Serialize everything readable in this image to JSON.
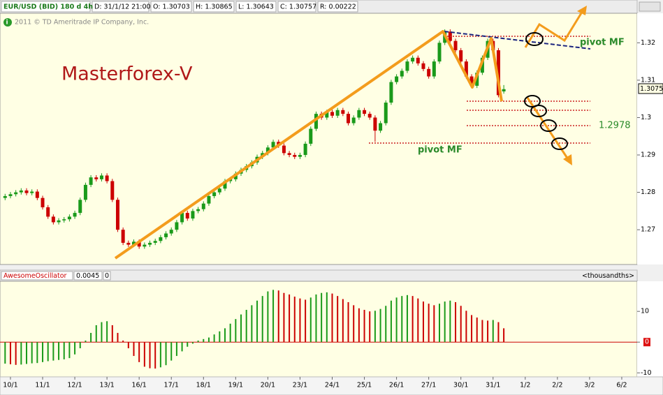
{
  "header": {
    "symbol": "EUR/USD (BID)  180 d  4h",
    "date": "D: 31/1/12 21:00",
    "open": "O: 1.30703",
    "high": "H: 1.30865",
    "low": "L: 1.30643",
    "close": "C: 1.30757",
    "range": "R: 0.00222",
    "copyright": "2011 © TD Ameritrade IP Company, Inc."
  },
  "annotations": {
    "brand": "Masterforex-V",
    "pivot_top": "pivot MF",
    "level": "1.2978",
    "pivot_bottom": "pivot MF",
    "last_price": "1.3075"
  },
  "chart_data": [
    {
      "type": "candlestick",
      "up_color": "#1a9a1a",
      "down_color": "#cc0000",
      "xlim": [
        -0.95,
        117.87
      ],
      "ylim": [
        1.2607,
        1.3279
      ],
      "yticks": [
        1.27,
        1.28,
        1.29,
        1.3,
        1.31,
        1.32
      ],
      "open": [
        1.2785,
        1.279,
        1.2795,
        1.28,
        1.2805,
        1.2798,
        1.2802,
        1.2785,
        1.276,
        1.2735,
        1.272,
        1.2725,
        1.2728,
        1.2735,
        1.2745,
        1.278,
        1.282,
        1.284,
        1.2835,
        1.2845,
        1.283,
        1.278,
        1.27,
        1.2665,
        1.266,
        1.2668,
        1.2655,
        1.266,
        1.2665,
        1.267,
        1.268,
        1.269,
        1.27,
        1.272,
        1.2745,
        1.273,
        1.275,
        1.2755,
        1.277,
        1.279,
        1.28,
        1.281,
        1.283,
        1.2835,
        1.285,
        1.286,
        1.287,
        1.288,
        1.2895,
        1.2905,
        1.292,
        1.2935,
        1.2925,
        1.2905,
        1.29,
        1.2895,
        1.29,
        1.293,
        1.297,
        1.301,
        1.3,
        1.3015,
        1.3005,
        1.302,
        1.301,
        1.2985,
        1.3,
        1.302,
        1.301,
        1.3,
        1.2965,
        1.2985,
        1.304,
        1.3095,
        1.311,
        1.3125,
        1.315,
        1.316,
        1.3145,
        1.313,
        1.311,
        1.315,
        1.32,
        1.323,
        1.3205,
        1.318,
        1.315,
        1.311,
        1.3085,
        1.312,
        1.316,
        1.3205,
        1.318,
        1.307
      ],
      "high": [
        1.2796,
        1.2801,
        1.2806,
        1.2811,
        1.2811,
        1.2808,
        1.2808,
        1.2791,
        1.2766,
        1.2741,
        1.2731,
        1.2734,
        1.2741,
        1.2751,
        1.2786,
        1.2826,
        1.2846,
        1.2846,
        1.2851,
        1.2851,
        1.2836,
        1.2786,
        1.2706,
        1.2671,
        1.2674,
        1.2674,
        1.2666,
        1.2671,
        1.2676,
        1.2686,
        1.2696,
        1.2706,
        1.2726,
        1.2751,
        1.2751,
        1.2756,
        1.2761,
        1.2776,
        1.2796,
        1.2806,
        1.2816,
        1.2836,
        1.2841,
        1.2856,
        1.2866,
        1.2876,
        1.2886,
        1.2901,
        1.2911,
        1.2926,
        1.2941,
        1.2941,
        1.2931,
        1.2911,
        1.2906,
        1.2906,
        1.2936,
        1.2976,
        1.3016,
        1.3016,
        1.3021,
        1.3021,
        1.3026,
        1.3026,
        1.3016,
        1.3006,
        1.3026,
        1.3026,
        1.3016,
        1.3006,
        1.2991,
        1.3046,
        1.3101,
        1.3116,
        1.3131,
        1.3156,
        1.3166,
        1.3166,
        1.3151,
        1.3136,
        1.3156,
        1.3206,
        1.3236,
        1.3236,
        1.3211,
        1.3186,
        1.3156,
        1.3116,
        1.3126,
        1.3166,
        1.3211,
        1.3211,
        1.3186,
        1.3087
      ],
      "low": [
        1.2779,
        1.2784,
        1.2789,
        1.2794,
        1.2792,
        1.2792,
        1.2779,
        1.2754,
        1.2729,
        1.2714,
        1.2714,
        1.2719,
        1.2722,
        1.2729,
        1.2739,
        1.2774,
        1.2814,
        1.2829,
        1.2829,
        1.2824,
        1.2774,
        1.2694,
        1.2659,
        1.2654,
        1.2654,
        1.2649,
        1.2649,
        1.2654,
        1.2659,
        1.2664,
        1.2674,
        1.2684,
        1.2694,
        1.2714,
        1.2724,
        1.2724,
        1.2744,
        1.2749,
        1.2764,
        1.2784,
        1.2794,
        1.2804,
        1.2824,
        1.2829,
        1.2844,
        1.2854,
        1.2864,
        1.2874,
        1.2889,
        1.2899,
        1.2914,
        1.2919,
        1.2899,
        1.2894,
        1.2889,
        1.2889,
        1.2894,
        1.2924,
        1.2964,
        1.2994,
        1.2994,
        1.2999,
        1.2999,
        1.3004,
        1.2979,
        1.2979,
        1.2994,
        1.3004,
        1.2994,
        1.2935,
        1.2959,
        1.2979,
        1.3034,
        1.3089,
        1.3104,
        1.3119,
        1.3144,
        1.3139,
        1.3124,
        1.3104,
        1.3104,
        1.3144,
        1.3194,
        1.3199,
        1.3174,
        1.3144,
        1.3104,
        1.3079,
        1.3079,
        1.3114,
        1.3154,
        1.3174,
        1.3054,
        1.3064
      ],
      "close": [
        1.279,
        1.2795,
        1.28,
        1.2805,
        1.2798,
        1.2802,
        1.2785,
        1.276,
        1.2735,
        1.272,
        1.2725,
        1.2728,
        1.2735,
        1.2745,
        1.278,
        1.282,
        1.284,
        1.2835,
        1.2845,
        1.283,
        1.278,
        1.27,
        1.2665,
        1.266,
        1.2668,
        1.2655,
        1.266,
        1.2665,
        1.267,
        1.268,
        1.269,
        1.27,
        1.272,
        1.2745,
        1.273,
        1.275,
        1.2755,
        1.277,
        1.279,
        1.28,
        1.281,
        1.283,
        1.2835,
        1.285,
        1.286,
        1.287,
        1.288,
        1.2895,
        1.2905,
        1.292,
        1.2935,
        1.2925,
        1.2905,
        1.29,
        1.2895,
        1.29,
        1.293,
        1.297,
        1.301,
        1.3,
        1.3015,
        1.3005,
        1.302,
        1.301,
        1.2985,
        1.3,
        1.302,
        1.301,
        1.3,
        1.2965,
        1.2985,
        1.304,
        1.3095,
        1.311,
        1.3125,
        1.315,
        1.316,
        1.3145,
        1.313,
        1.311,
        1.315,
        1.32,
        1.323,
        1.3205,
        1.318,
        1.315,
        1.311,
        1.3085,
        1.312,
        1.316,
        1.3205,
        1.318,
        1.306,
        1.3076
      ]
    },
    {
      "type": "bar",
      "title": "AwesomeOscillator",
      "last_value": "0.0045",
      "zero_label": "0",
      "unit": "<thousandths>",
      "up_color": "#1a9a1a",
      "down_color": "#cc0000",
      "xlim": [
        -0.95,
        117.87
      ],
      "ylim": [
        -11.3,
        19.8
      ],
      "yticks": [
        -10,
        0,
        10
      ],
      "xticks": [
        {
          "value": 1,
          "label": "10/1"
        },
        {
          "value": 7,
          "label": "11/1"
        },
        {
          "value": 13,
          "label": "12/1"
        },
        {
          "value": 19,
          "label": "13/1"
        },
        {
          "value": 25,
          "label": "16/1"
        },
        {
          "value": 31,
          "label": "17/1"
        },
        {
          "value": 37,
          "label": "18/1"
        },
        {
          "value": 43,
          "label": "19/1"
        },
        {
          "value": 49,
          "label": "20/1"
        },
        {
          "value": 55,
          "label": "23/1"
        },
        {
          "value": 61,
          "label": "24/1"
        },
        {
          "value": 67,
          "label": "25/1"
        },
        {
          "value": 73,
          "label": "26/1"
        },
        {
          "value": 79,
          "label": "27/1"
        },
        {
          "value": 85,
          "label": "30/1"
        },
        {
          "value": 91,
          "label": "31/1"
        },
        {
          "value": 97,
          "label": "1/2"
        },
        {
          "value": 103,
          "label": "2/2"
        },
        {
          "value": 109,
          "label": "3/2"
        },
        {
          "value": 115,
          "label": "6/2"
        }
      ],
      "values": [
        -7.0,
        -7.2,
        -7.4,
        -7.3,
        -7.1,
        -6.9,
        -6.8,
        -6.5,
        -6.2,
        -6.0,
        -5.8,
        -5.6,
        -5.2,
        -4.0,
        -2.0,
        0.5,
        3.0,
        5.5,
        6.5,
        6.8,
        5.5,
        3.0,
        0.5,
        -2.0,
        -4.5,
        -6.5,
        -8.0,
        -8.5,
        -8.6,
        -8.2,
        -7.5,
        -6.0,
        -4.5,
        -3.0,
        -1.5,
        -0.5,
        0.5,
        1.0,
        1.5,
        2.5,
        3.5,
        4.5,
        6.0,
        7.5,
        9.0,
        10.5,
        12.0,
        13.5,
        15.0,
        16.5,
        17.0,
        16.8,
        16.0,
        15.5,
        14.8,
        14.2,
        13.8,
        14.5,
        15.5,
        16.0,
        16.2,
        15.8,
        15.0,
        14.0,
        13.0,
        12.0,
        11.0,
        10.5,
        10.0,
        10.2,
        10.8,
        11.8,
        13.5,
        14.5,
        15.0,
        15.3,
        15.0,
        14.2,
        13.2,
        12.5,
        12.0,
        12.5,
        13.2,
        13.5,
        13.0,
        11.8,
        10.2,
        8.8,
        8.0,
        7.2,
        7.0,
        7.2,
        6.5,
        4.5
      ]
    }
  ]
}
